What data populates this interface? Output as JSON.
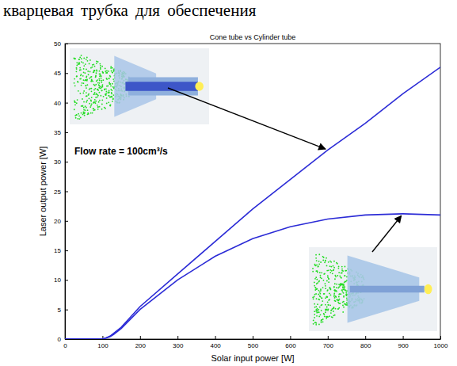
{
  "document_text": "кварцевая трубка для обеспечения",
  "chart_data": {
    "type": "line",
    "title": "Cone tube vs Cylinder tube",
    "x_label": "Solar input power [W]",
    "y_label": "Laser output power [W]",
    "x": [
      0,
      50,
      100,
      110,
      120,
      130,
      150,
      200,
      300,
      400,
      500,
      600,
      700,
      800,
      900,
      1000
    ],
    "series": [
      {
        "color": "#2b2bd6",
        "values": [
          0,
          0,
          0,
          0.2,
          0.5,
          1,
          2,
          5.5,
          11,
          16.5,
          22,
          27,
          32,
          36.5,
          41.5,
          46
        ]
      },
      {
        "color": "#2b2bd6",
        "values": [
          0,
          0,
          0,
          0.2,
          0.4,
          0.8,
          1.8,
          5,
          10,
          14,
          17,
          19,
          20.3,
          21,
          21.2,
          21
        ]
      }
    ],
    "xlim": [
      0,
      1000
    ],
    "xticks": [
      0,
      100,
      200,
      300,
      400,
      500,
      600,
      700,
      800,
      900,
      1000
    ],
    "ylim": [
      0,
      50
    ],
    "yticks": [
      0,
      5,
      10,
      15,
      20,
      25,
      30,
      35,
      40,
      45,
      50
    ],
    "grid": false,
    "annotations": [
      "Flow rate = 100cm³/s"
    ]
  }
}
